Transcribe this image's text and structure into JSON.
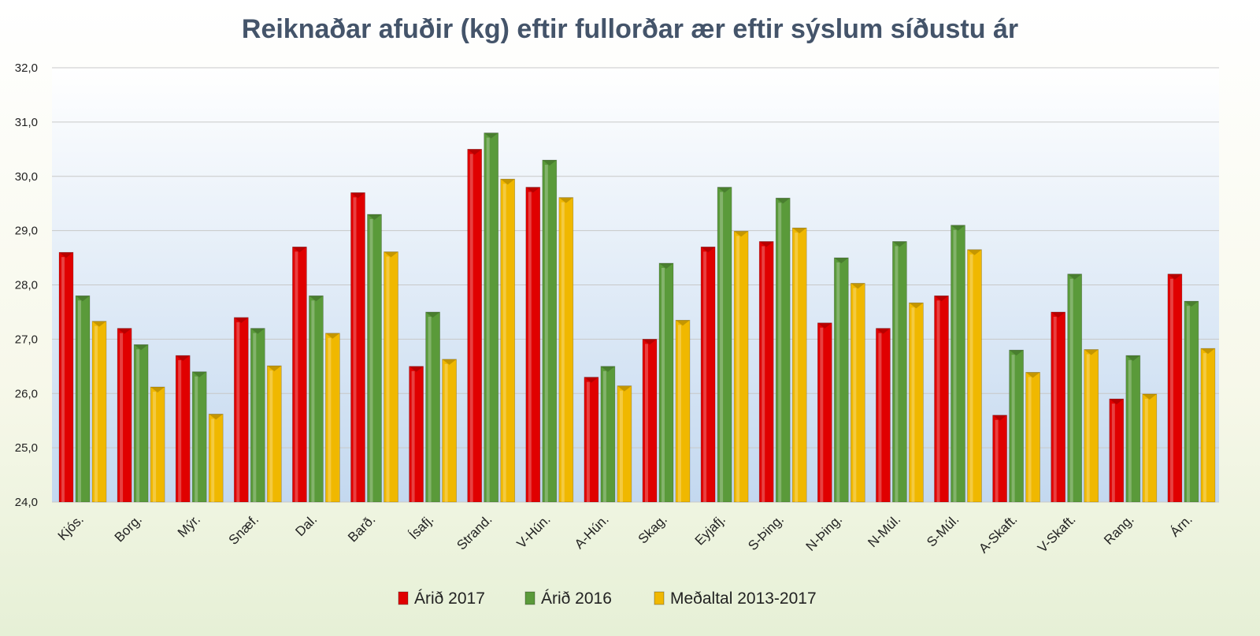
{
  "chart_data": {
    "type": "bar",
    "title": "Reiknaðar afuðir (kg) eftir fullorðar ær eftir sýslum síðustu ár",
    "xlabel": "",
    "ylabel": "",
    "ylim": [
      24,
      32
    ],
    "yticks": [
      "24,0",
      "25,0",
      "26,0",
      "27,0",
      "28,0",
      "29,0",
      "30,0",
      "31,0",
      "32,0"
    ],
    "grid": true,
    "legend_position": "bottom",
    "categories": [
      "Kjós.",
      "Borg.",
      "Mýr.",
      "Snæf.",
      "Dal.",
      "Barð.",
      "Ísafj.",
      "Strand.",
      "V-Hún.",
      "A-Hún.",
      "Skag.",
      "Eyjafj.",
      "S-Þing.",
      "N-Þing.",
      "N-Múl.",
      "S-Múl.",
      "A-Skaft.",
      "V-Skaft.",
      "Rang.",
      "Árn."
    ],
    "series": [
      {
        "name": "Árið 2017",
        "color": "#e00000",
        "values": [
          28.6,
          27.2,
          26.7,
          27.4,
          28.7,
          29.7,
          26.5,
          30.5,
          29.8,
          26.3,
          27.0,
          28.7,
          28.8,
          27.3,
          27.2,
          27.8,
          25.6,
          27.5,
          25.9,
          28.2
        ]
      },
      {
        "name": "Árið 2016",
        "color": "#5a9a3a",
        "values": [
          27.8,
          26.9,
          26.4,
          27.2,
          27.8,
          29.3,
          27.5,
          30.8,
          30.3,
          26.5,
          28.4,
          29.8,
          29.6,
          28.5,
          28.8,
          29.1,
          26.8,
          28.2,
          26.7,
          27.7
        ]
      },
      {
        "name": "Meðaltal 2013-2017",
        "color": "#f0b800",
        "values": [
          27.33,
          26.12,
          25.62,
          26.51,
          27.11,
          28.61,
          26.63,
          29.95,
          29.61,
          26.14,
          27.35,
          28.99,
          29.05,
          28.03,
          27.67,
          28.65,
          26.39,
          26.81,
          25.99,
          26.83
        ]
      }
    ]
  }
}
